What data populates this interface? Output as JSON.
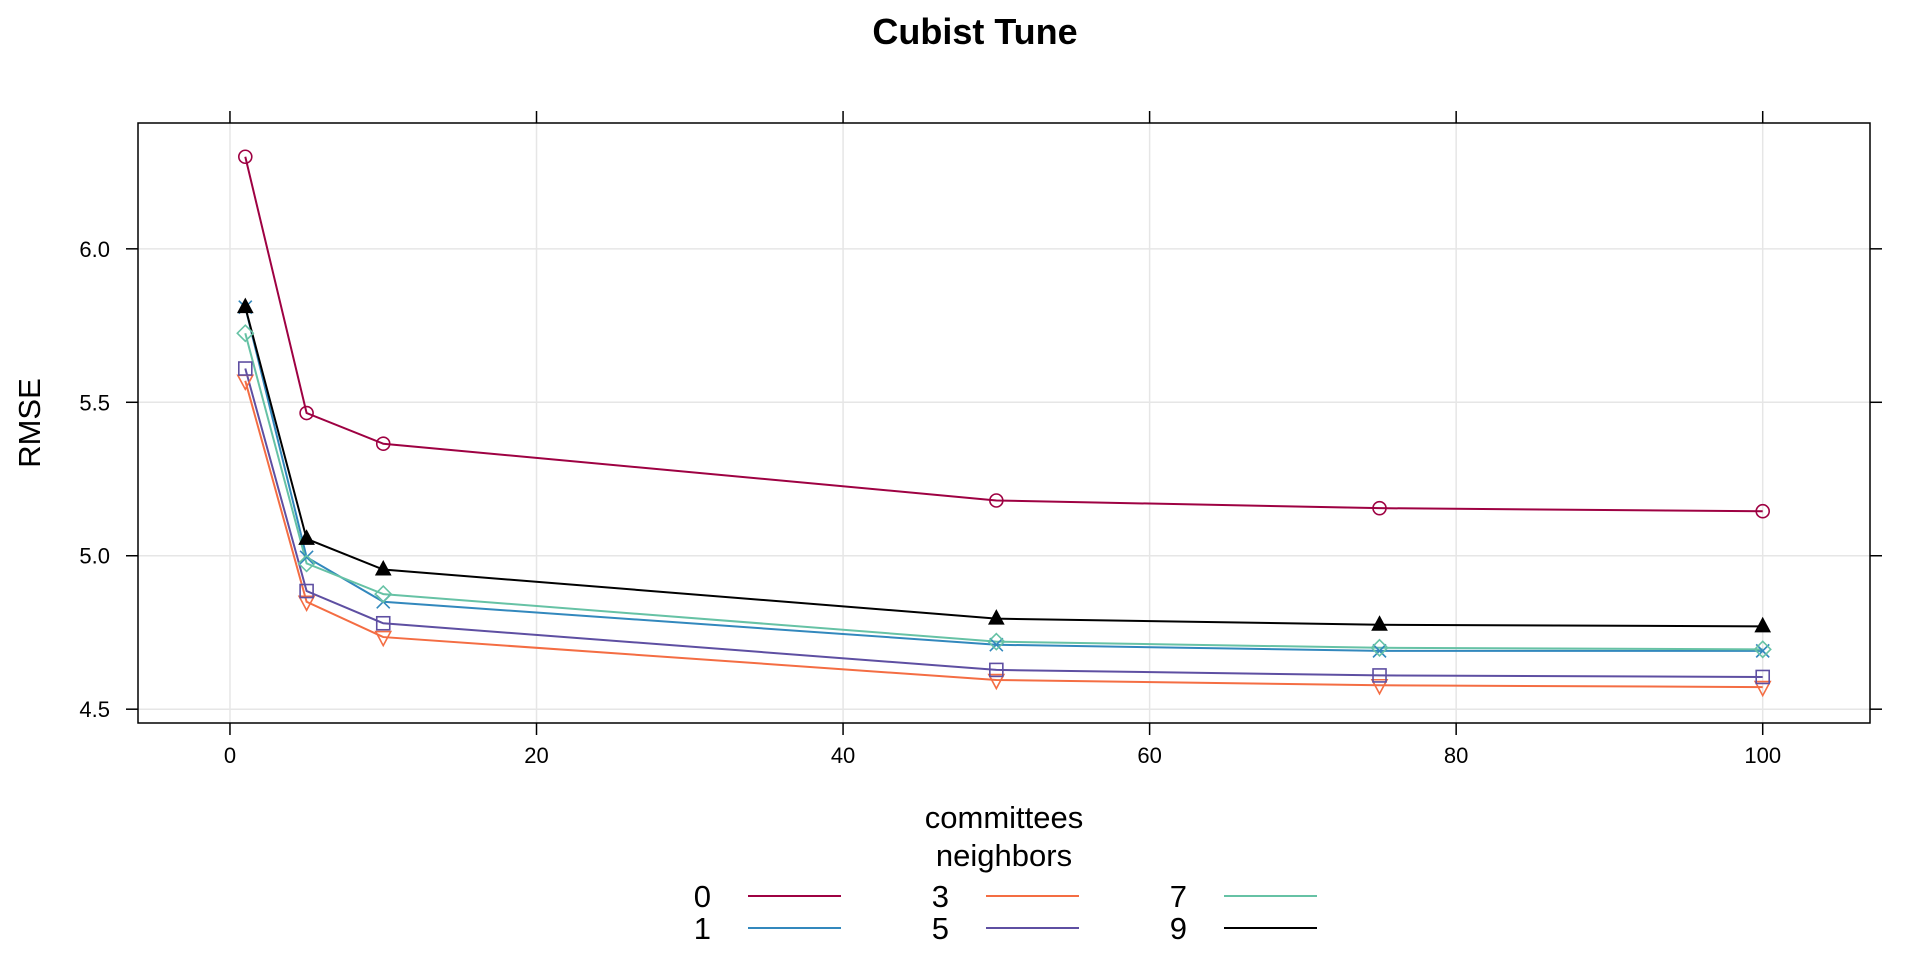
{
  "chart_data": {
    "type": "line",
    "title": "Cubist Tune",
    "xlabel": "committees",
    "ylabel": "RMSE",
    "xlim": [
      -6,
      107
    ],
    "ylim": [
      4.455,
      6.41
    ],
    "xticks": [
      0,
      20,
      40,
      60,
      80,
      100
    ],
    "yticks": [
      4.5,
      5.0,
      5.5,
      6.0
    ],
    "xtick_labels": [
      "0",
      "20",
      "40",
      "60",
      "80",
      "100"
    ],
    "ytick_labels": [
      "4.5",
      "5.0",
      "5.5",
      "6.0"
    ],
    "grid": true,
    "legend": {
      "title": "neighbors",
      "position": "bottom"
    },
    "x": [
      1,
      5,
      10,
      50,
      75,
      100
    ],
    "series": [
      {
        "name": "0",
        "color": "#9e0142",
        "marker": "circle",
        "values": [
          6.3,
          5.465,
          5.365,
          5.18,
          5.155,
          5.145
        ]
      },
      {
        "name": "1",
        "color": "#3288bd",
        "marker": "x",
        "values": [
          5.81,
          4.995,
          4.85,
          4.71,
          4.69,
          4.69
        ]
      },
      {
        "name": "3",
        "color": "#f46d43",
        "marker": "triangle-down",
        "values": [
          5.57,
          4.85,
          4.735,
          4.595,
          4.578,
          4.572
        ]
      },
      {
        "name": "5",
        "color": "#5e4fa2",
        "marker": "square",
        "values": [
          5.61,
          4.885,
          4.78,
          4.628,
          4.61,
          4.605
        ]
      },
      {
        "name": "7",
        "color": "#66c2a5",
        "marker": "diamond",
        "values": [
          5.725,
          4.975,
          4.875,
          4.72,
          4.7,
          4.695
        ]
      },
      {
        "name": "9",
        "color": "#000000",
        "marker": "triangle-filled",
        "values": [
          5.81,
          5.055,
          4.955,
          4.795,
          4.775,
          4.77
        ]
      }
    ]
  }
}
